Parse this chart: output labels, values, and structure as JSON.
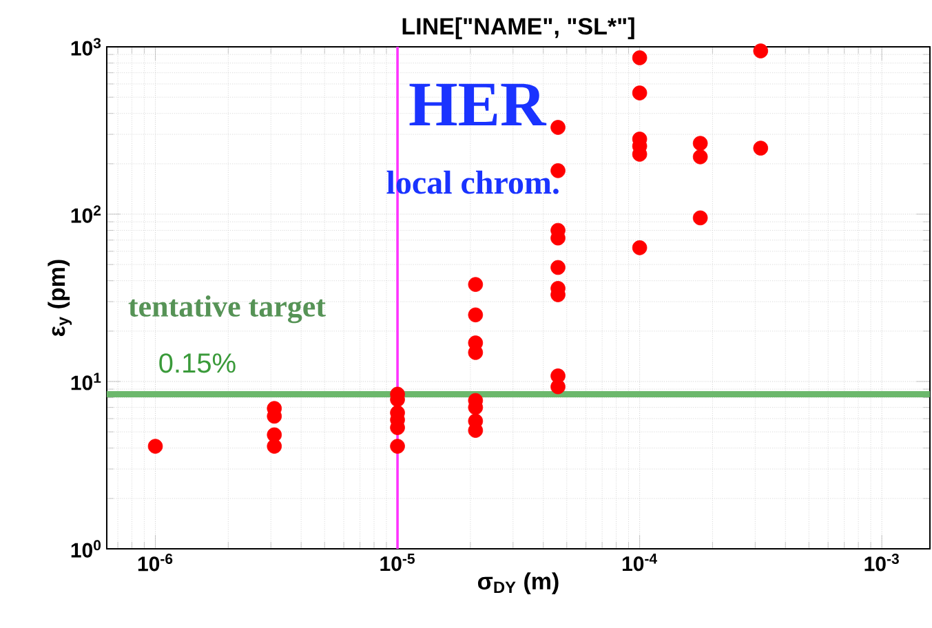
{
  "chart_data": {
    "type": "scatter",
    "title": "LINE[\"NAME\", \"SL*\"]",
    "xlabel": "σ$_{DY}$ (m)",
    "ylabel": "ε$_{y}$ (pm)",
    "log": "xy",
    "grid": true,
    "marker": "circle",
    "xlim": [
      6.3e-07,
      0.00158
    ],
    "ylim": [
      1,
      1000
    ],
    "xticks": [
      {
        "value": 1e-06,
        "label": "10$^{-6}$"
      },
      {
        "value": 1e-05,
        "label": "10$^{-5}$"
      },
      {
        "value": 0.0001,
        "label": "10$^{-4}$"
      },
      {
        "value": 0.001,
        "label": "10$^{-3}$"
      }
    ],
    "yticks": [
      {
        "value": 1,
        "label": "10$^{0}$"
      },
      {
        "value": 10,
        "label": "10$^{1}$"
      },
      {
        "value": 100,
        "label": "10$^{2}$"
      },
      {
        "value": 1000,
        "label": "10$^{3}$"
      }
    ],
    "series": [
      {
        "color": "#ff0000",
        "x": [
          1e-06,
          3.1e-06,
          3.1e-06,
          3.1e-06,
          3.1e-06,
          1e-05,
          1e-05,
          1e-05,
          1e-05,
          1e-05,
          1e-05,
          2.1e-05,
          2.1e-05,
          2.1e-05,
          2.1e-05,
          2.1e-05,
          2.1e-05,
          2.1e-05,
          2.1e-05,
          4.6e-05,
          4.6e-05,
          4.6e-05,
          4.6e-05,
          4.6e-05,
          4.6e-05,
          4.6e-05,
          4.6e-05,
          4.6e-05,
          0.0001,
          0.0001,
          0.0001,
          0.0001,
          0.0001,
          0.0001,
          0.000178,
          0.000178,
          0.000178,
          0.000316,
          0.000316
        ],
        "values": [
          4.1,
          6.9,
          6.2,
          4.8,
          4.1,
          8.4,
          7.8,
          6.5,
          5.9,
          5.3,
          4.1,
          38,
          25,
          17,
          14.9,
          7.7,
          7.0,
          5.8,
          5.1,
          330,
          182,
          80,
          72,
          48,
          36,
          33,
          10.8,
          9.3,
          860,
          530,
          281,
          255,
          228,
          63,
          265,
          220,
          95,
          945,
          248
        ]
      }
    ],
    "ref_lines": [
      {
        "axis": "y",
        "value": 8.4,
        "label": "tentative target",
        "color": "#6cb86c"
      },
      {
        "axis": "x",
        "value": 1e-05,
        "color": "#ff33ff"
      }
    ],
    "annotations": [
      "HER",
      "local chrom.",
      "0.15%"
    ]
  }
}
